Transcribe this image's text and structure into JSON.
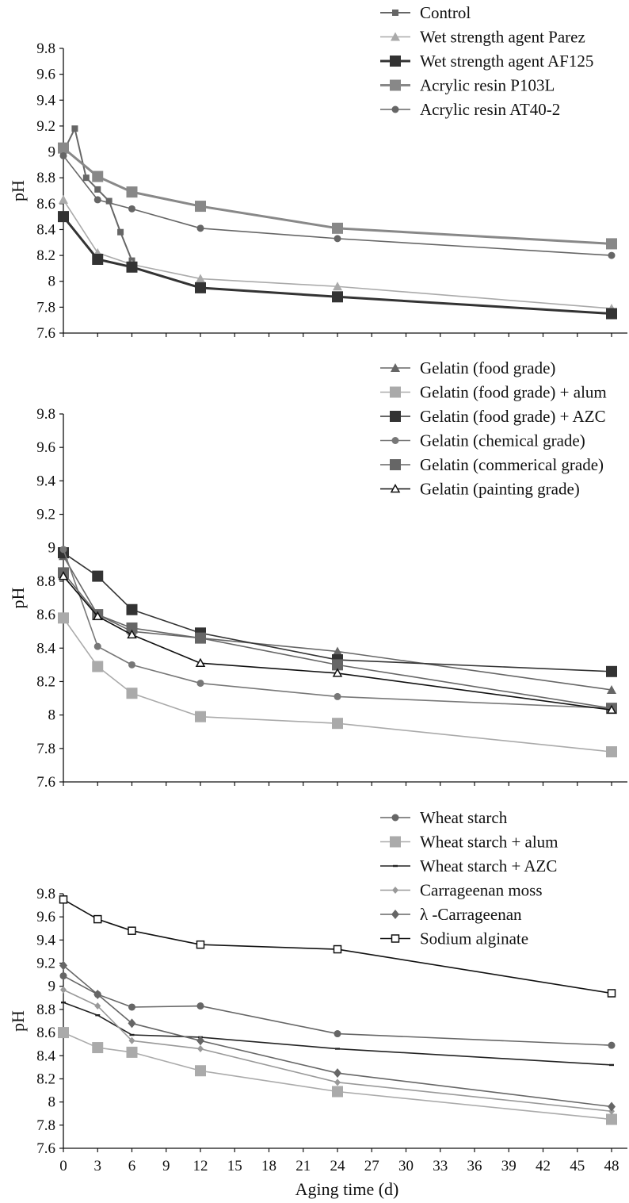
{
  "chart_data": [
    {
      "type": "line",
      "xlabel": "",
      "ylabel": "pH",
      "ylim": [
        7.6,
        9.8
      ],
      "yticks": [
        "7.6",
        "7.8",
        "8",
        "8.2",
        "8.4",
        "8.6",
        "8.8",
        "9",
        "9.2",
        "9.4",
        "9.6",
        "9.8"
      ],
      "xlim": [
        0,
        48
      ],
      "legend_position": "top-right",
      "series": [
        {
          "name": "Control",
          "color": "#666666",
          "marker": "square-small",
          "lineWidth": 2,
          "x": [
            0,
            1,
            2,
            3,
            4,
            5,
            6
          ],
          "y": [
            9.0,
            9.18,
            8.8,
            8.71,
            8.62,
            8.38,
            8.16
          ]
        },
        {
          "name": "Wet strength agent Parez",
          "color": "#aaaaaa",
          "marker": "triangle",
          "lineWidth": 1.6,
          "x": [
            0,
            3,
            6,
            12,
            24,
            48
          ],
          "y": [
            8.63,
            8.22,
            8.13,
            8.02,
            7.96,
            7.79
          ]
        },
        {
          "name": "Wet strength agent AF125",
          "color": "#333333",
          "marker": "square-large-dark",
          "lineWidth": 3,
          "x": [
            0,
            3,
            6,
            12,
            24,
            48
          ],
          "y": [
            8.5,
            8.17,
            8.11,
            7.95,
            7.88,
            7.75
          ]
        },
        {
          "name": "Acrylic resin P103L",
          "color": "#888888",
          "marker": "square-large",
          "lineWidth": 3,
          "x": [
            0,
            3,
            6,
            12,
            24,
            48
          ],
          "y": [
            9.03,
            8.81,
            8.69,
            8.58,
            8.41,
            8.29
          ]
        },
        {
          "name": "Acrylic resin AT40-2",
          "color": "#666666",
          "marker": "circle",
          "lineWidth": 1.6,
          "x": [
            0,
            3,
            6,
            12,
            24,
            48
          ],
          "y": [
            8.97,
            8.63,
            8.56,
            8.41,
            8.33,
            8.2
          ]
        }
      ]
    },
    {
      "type": "line",
      "xlabel": "",
      "ylabel": "pH",
      "ylim": [
        7.6,
        9.8
      ],
      "yticks": [
        "7.6",
        "7.8",
        "8",
        "8.2",
        "8.4",
        "8.6",
        "8.8",
        "9",
        "9.2",
        "9.4",
        "9.6",
        "9.8"
      ],
      "xlim": [
        0,
        48
      ],
      "legend_position": "top-right",
      "series": [
        {
          "name": "Gelatin (food grade)",
          "color": "#666666",
          "marker": "triangle",
          "lineWidth": 1.6,
          "x": [
            0,
            3,
            6,
            12,
            24,
            48
          ],
          "y": [
            8.95,
            8.6,
            8.5,
            8.46,
            8.38,
            8.15
          ]
        },
        {
          "name": "Gelatin (food grade) + alum",
          "color": "#aaaaaa",
          "marker": "square-large",
          "lineWidth": 1.6,
          "x": [
            0,
            3,
            6,
            12,
            24,
            48
          ],
          "y": [
            8.58,
            8.29,
            8.13,
            7.99,
            7.95,
            7.78
          ]
        },
        {
          "name": "Gelatin (food grade) + AZC",
          "color": "#333333",
          "marker": "square-large-dark",
          "lineWidth": 1.6,
          "x": [
            0,
            3,
            6,
            12,
            24,
            48
          ],
          "y": [
            8.97,
            8.83,
            8.63,
            8.49,
            8.33,
            8.26
          ]
        },
        {
          "name": "Gelatin (chemical grade)",
          "color": "#777777",
          "marker": "circle",
          "lineWidth": 1.6,
          "x": [
            0,
            3,
            6,
            12,
            24,
            48
          ],
          "y": [
            8.99,
            8.41,
            8.3,
            8.19,
            8.11,
            8.04
          ]
        },
        {
          "name": "Gelatin (commerical grade)",
          "color": "#666666",
          "marker": "square-large",
          "lineWidth": 1.6,
          "x": [
            0,
            3,
            6,
            12,
            24,
            48
          ],
          "y": [
            8.85,
            8.6,
            8.52,
            8.46,
            8.3,
            8.04
          ]
        },
        {
          "name": "Gelatin (painting grade)",
          "color": "#111111",
          "marker": "triangle-open",
          "lineWidth": 1.6,
          "x": [
            0,
            3,
            6,
            12,
            24,
            48
          ],
          "y": [
            8.83,
            8.59,
            8.48,
            8.31,
            8.25,
            8.03
          ]
        }
      ]
    },
    {
      "type": "line",
      "xlabel": "Aging time (d)",
      "ylabel": "pH",
      "ylim": [
        7.6,
        9.8
      ],
      "yticks": [
        "7.6",
        "7.8",
        "8",
        "8.2",
        "8.4",
        "8.6",
        "8.8",
        "9",
        "9.2",
        "9.4",
        "9.6",
        "9.8"
      ],
      "xlim": [
        0,
        48
      ],
      "xticks": [
        "0",
        "3",
        "6",
        "9",
        "12",
        "15",
        "18",
        "21",
        "24",
        "27",
        "30",
        "33",
        "36",
        "39",
        "42",
        "45",
        "48"
      ],
      "legend_position": "top-right",
      "series": [
        {
          "name": "Wheat starch",
          "color": "#666666",
          "marker": "circle",
          "lineWidth": 1.6,
          "x": [
            0,
            3,
            6,
            12,
            24,
            48
          ],
          "y": [
            9.09,
            8.93,
            8.82,
            8.83,
            8.59,
            8.49
          ]
        },
        {
          "name": "Wheat starch + alum",
          "color": "#aaaaaa",
          "marker": "square-large",
          "lineWidth": 1.6,
          "x": [
            0,
            3,
            6,
            12,
            24,
            48
          ],
          "y": [
            8.6,
            8.47,
            8.43,
            8.27,
            8.09,
            7.85
          ]
        },
        {
          "name": "Wheat starch + AZC",
          "color": "#222222",
          "marker": "dash",
          "lineWidth": 1.6,
          "x": [
            0,
            3,
            6,
            12,
            24,
            48
          ],
          "y": [
            8.86,
            8.75,
            8.58,
            8.56,
            8.46,
            8.32
          ]
        },
        {
          "name": "Carrageenan moss",
          "color": "#999999",
          "marker": "diamond-small",
          "lineWidth": 1.6,
          "x": [
            0,
            3,
            6,
            12,
            24,
            48
          ],
          "y": [
            8.97,
            8.83,
            8.53,
            8.46,
            8.17,
            7.92
          ]
        },
        {
          "name": "λ -Carrageenan",
          "color": "#666666",
          "marker": "diamond",
          "lineWidth": 1.6,
          "x": [
            0,
            3,
            6,
            12,
            24,
            48
          ],
          "y": [
            9.18,
            8.93,
            8.68,
            8.53,
            8.25,
            7.96
          ]
        },
        {
          "name": "Sodium alginate",
          "color": "#111111",
          "marker": "square-open",
          "lineWidth": 1.6,
          "x": [
            0,
            3,
            6,
            12,
            24,
            48
          ],
          "y": [
            9.75,
            9.58,
            9.48,
            9.36,
            9.32,
            8.94
          ]
        }
      ]
    }
  ]
}
